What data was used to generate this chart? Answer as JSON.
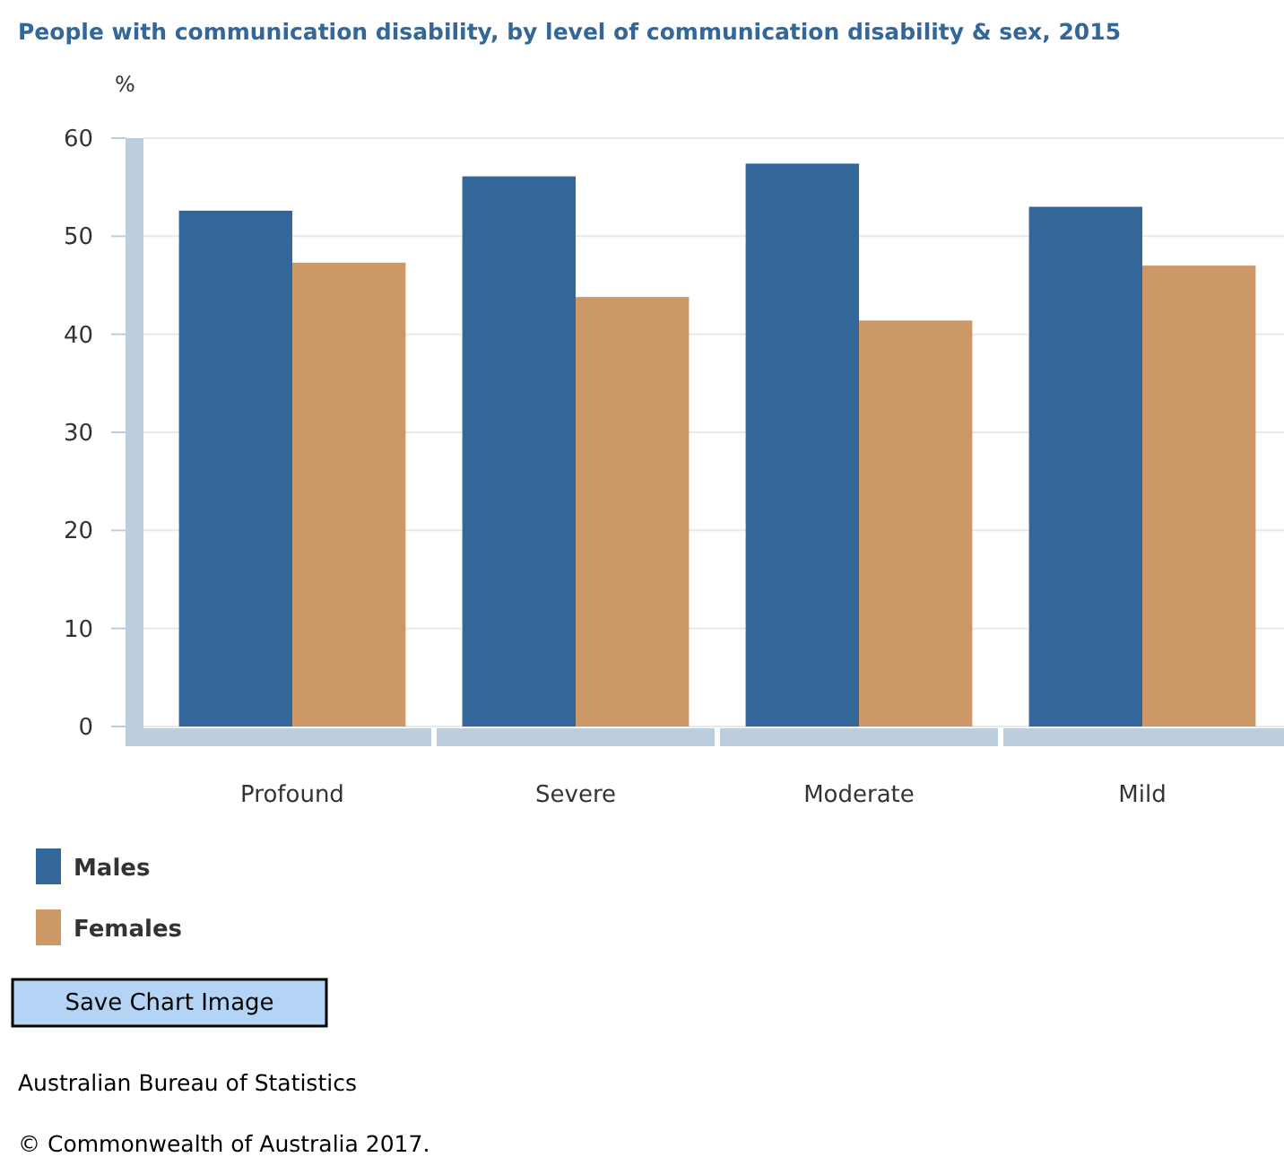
{
  "chart_data": {
    "type": "bar",
    "title": "People with communication disability, by level of communication disability & sex, 2015",
    "ylabel": "%",
    "categories": [
      "Profound",
      "Severe",
      "Moderate",
      "Mild"
    ],
    "series": [
      {
        "name": "Males",
        "color": "#336699",
        "values": [
          52.6,
          56.1,
          57.4,
          53.0
        ]
      },
      {
        "name": "Females",
        "color": "#cc9966",
        "values": [
          47.3,
          43.8,
          41.4,
          47.0
        ]
      }
    ],
    "ylim": [
      0,
      60
    ],
    "yticks": [
      0,
      10,
      20,
      30,
      40,
      50,
      60
    ],
    "grid": "y",
    "legend": "bottom",
    "annotations": [
      "Save Chart Image",
      "Australian Bureau of Statistics",
      "© Commonwealth of Australia 2017."
    ]
  }
}
